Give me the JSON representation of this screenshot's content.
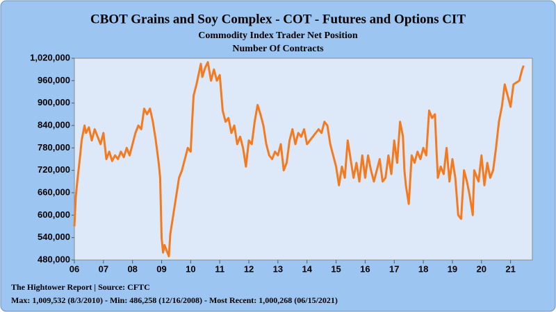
{
  "chart_data": {
    "type": "line",
    "title": "CBOT Grains and Soy Complex - COT - Futures and Options CIT",
    "subtitle": "Commodity Index Trader Net Position",
    "subtitle2": "Number Of Contracts",
    "source": "The Hightower Report | Source: CFTC",
    "note": "Max: 1,009,532 (8/3/2010)  - Min: 486,258 (12/16/2008) - Most Recent: 1,000,268 (06/15/2021)",
    "color": "#f47a1f",
    "grid": false,
    "xlim": [
      2006,
      2021.75
    ],
    "xticks": [
      {
        "value": 2006,
        "label": "06"
      },
      {
        "value": 2007,
        "label": "07"
      },
      {
        "value": 2008,
        "label": "08"
      },
      {
        "value": 2009,
        "label": "09"
      },
      {
        "value": 2010,
        "label": "10"
      },
      {
        "value": 2011,
        "label": "11"
      },
      {
        "value": 2012,
        "label": "12"
      },
      {
        "value": 2013,
        "label": "13"
      },
      {
        "value": 2014,
        "label": "14"
      },
      {
        "value": 2015,
        "label": "15"
      },
      {
        "value": 2016,
        "label": "16"
      },
      {
        "value": 2017,
        "label": "17"
      },
      {
        "value": 2018,
        "label": "18"
      },
      {
        "value": 2019,
        "label": "19"
      },
      {
        "value": 2020,
        "label": "20"
      },
      {
        "value": 2021,
        "label": "21"
      }
    ],
    "ylim": [
      480000,
      1020000
    ],
    "yticks": [
      {
        "value": 480000,
        "label": "480,000"
      },
      {
        "value": 540000,
        "label": "540,000"
      },
      {
        "value": 600000,
        "label": "600,000"
      },
      {
        "value": 660000,
        "label": "660,000"
      },
      {
        "value": 720000,
        "label": "720,000"
      },
      {
        "value": 780000,
        "label": "780,000"
      },
      {
        "value": 840000,
        "label": "840,000"
      },
      {
        "value": 900000,
        "label": "900,000"
      },
      {
        "value": 960000,
        "label": "960,000"
      },
      {
        "value": 1020000,
        "label": "1,020,000"
      }
    ],
    "x": [
      2006.0,
      2006.05,
      2006.1,
      2006.2,
      2006.25,
      2006.35,
      2006.4,
      2006.5,
      2006.6,
      2006.7,
      2006.8,
      2006.9,
      2007.0,
      2007.1,
      2007.2,
      2007.3,
      2007.4,
      2007.5,
      2007.6,
      2007.7,
      2007.8,
      2007.9,
      2008.0,
      2008.1,
      2008.2,
      2008.3,
      2008.4,
      2008.5,
      2008.6,
      2008.7,
      2008.8,
      2008.9,
      2008.95,
      2009.0,
      2009.05,
      2009.1,
      2009.2,
      2009.25,
      2009.3,
      2009.4,
      2009.5,
      2009.6,
      2009.7,
      2009.8,
      2009.9,
      2010.0,
      2010.05,
      2010.1,
      2010.2,
      2010.35,
      2010.4,
      2010.5,
      2010.59,
      2010.7,
      2010.8,
      2010.9,
      2011.0,
      2011.1,
      2011.2,
      2011.3,
      2011.4,
      2011.5,
      2011.6,
      2011.7,
      2011.8,
      2011.9,
      2012.0,
      2012.1,
      2012.2,
      2012.3,
      2012.4,
      2012.5,
      2012.6,
      2012.7,
      2012.8,
      2012.9,
      2013.0,
      2013.1,
      2013.2,
      2013.3,
      2013.4,
      2013.5,
      2013.6,
      2013.7,
      2013.8,
      2013.9,
      2014.0,
      2014.2,
      2014.4,
      2014.5,
      2014.6,
      2014.7,
      2014.8,
      2014.9,
      2015.0,
      2015.1,
      2015.2,
      2015.3,
      2015.4,
      2015.5,
      2015.6,
      2015.7,
      2015.8,
      2015.9,
      2016.0,
      2016.1,
      2016.2,
      2016.3,
      2016.5,
      2016.6,
      2016.7,
      2016.8,
      2016.9,
      2017.0,
      2017.1,
      2017.2,
      2017.3,
      2017.35,
      2017.4,
      2017.5,
      2017.6,
      2017.7,
      2017.8,
      2017.9,
      2018.0,
      2018.1,
      2018.2,
      2018.3,
      2018.4,
      2018.45,
      2018.5,
      2018.6,
      2018.7,
      2018.8,
      2018.9,
      2019.0,
      2019.1,
      2019.2,
      2019.3,
      2019.4,
      2019.5,
      2019.6,
      2019.7,
      2019.75,
      2019.9,
      2020.0,
      2020.05,
      2020.1,
      2020.2,
      2020.3,
      2020.4,
      2020.5,
      2020.6,
      2020.7,
      2020.75,
      2020.8,
      2020.9,
      2021.0,
      2021.1,
      2021.3,
      2021.4,
      2021.45
    ],
    "values": [
      570000,
      650000,
      690000,
      760000,
      800000,
      840000,
      820000,
      835000,
      800000,
      830000,
      810000,
      790000,
      820000,
      750000,
      770000,
      745000,
      760000,
      750000,
      770000,
      755000,
      780000,
      760000,
      790000,
      820000,
      840000,
      830000,
      885000,
      870000,
      885000,
      850000,
      800000,
      740000,
      700000,
      540000,
      500000,
      520000,
      500000,
      490000,
      550000,
      600000,
      650000,
      700000,
      720000,
      750000,
      780000,
      770000,
      850000,
      920000,
      950000,
      1005000,
      970000,
      995000,
      1009532,
      960000,
      990000,
      960000,
      975000,
      880000,
      850000,
      860000,
      820000,
      840000,
      790000,
      810000,
      780000,
      730000,
      800000,
      790000,
      850000,
      895000,
      870000,
      840000,
      790000,
      760000,
      750000,
      770000,
      760000,
      790000,
      720000,
      740000,
      800000,
      830000,
      790000,
      820000,
      810000,
      830000,
      790000,
      810000,
      830000,
      820000,
      850000,
      840000,
      790000,
      760000,
      730000,
      680000,
      730000,
      700000,
      800000,
      750000,
      700000,
      740000,
      690000,
      760000,
      700000,
      760000,
      720000,
      690000,
      750000,
      690000,
      700000,
      760000,
      710000,
      800000,
      740000,
      850000,
      810000,
      720000,
      680000,
      630000,
      760000,
      740000,
      770000,
      750000,
      780000,
      760000,
      880000,
      860000,
      870000,
      780000,
      700000,
      730000,
      710000,
      780000,
      690000,
      750000,
      700000,
      600000,
      590000,
      720000,
      690000,
      650000,
      600000,
      720000,
      690000,
      760000,
      720000,
      680000,
      740000,
      700000,
      720000,
      780000,
      850000,
      890000,
      920000,
      950000,
      920000,
      890000,
      950000,
      960000,
      990000,
      1000268
    ]
  }
}
